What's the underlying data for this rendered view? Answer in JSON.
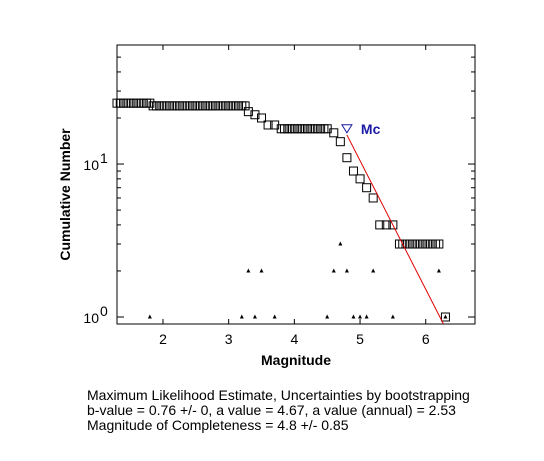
{
  "chart_data": {
    "type": "scatter",
    "xlabel": "Magnitude",
    "ylabel": "Cumulative Number",
    "x_ticks": [
      2,
      3,
      4,
      5,
      6
    ],
    "y_ticks": [
      {
        "value": 1,
        "base": "10",
        "exp": "0"
      },
      {
        "value": 10,
        "base": "10",
        "exp": "1"
      }
    ],
    "xlim": [
      1.3,
      6.75
    ],
    "ylim": [
      0.9,
      60
    ],
    "y_scale": "log",
    "series": [
      {
        "marker": "open-square",
        "color": "#000000",
        "points": [
          [
            1.3,
            25
          ],
          [
            1.35,
            25
          ],
          [
            1.4,
            25
          ],
          [
            1.45,
            25
          ],
          [
            1.5,
            25
          ],
          [
            1.55,
            25
          ],
          [
            1.6,
            25
          ],
          [
            1.65,
            25
          ],
          [
            1.7,
            25
          ],
          [
            1.75,
            25
          ],
          [
            1.8,
            25
          ],
          [
            1.85,
            24
          ],
          [
            1.9,
            24
          ],
          [
            1.95,
            24
          ],
          [
            2.0,
            24
          ],
          [
            2.05,
            24
          ],
          [
            2.1,
            24
          ],
          [
            2.15,
            24
          ],
          [
            2.2,
            24
          ],
          [
            2.25,
            24
          ],
          [
            2.3,
            24
          ],
          [
            2.35,
            24
          ],
          [
            2.4,
            24
          ],
          [
            2.45,
            24
          ],
          [
            2.5,
            24
          ],
          [
            2.55,
            24
          ],
          [
            2.6,
            24
          ],
          [
            2.65,
            24
          ],
          [
            2.7,
            24
          ],
          [
            2.75,
            24
          ],
          [
            2.8,
            24
          ],
          [
            2.85,
            24
          ],
          [
            2.9,
            24
          ],
          [
            2.95,
            24
          ],
          [
            3.0,
            24
          ],
          [
            3.05,
            24
          ],
          [
            3.1,
            24
          ],
          [
            3.15,
            24
          ],
          [
            3.2,
            24
          ],
          [
            3.25,
            24
          ],
          [
            3.3,
            22
          ],
          [
            3.4,
            21
          ],
          [
            3.5,
            20
          ],
          [
            3.6,
            18
          ],
          [
            3.7,
            18
          ],
          [
            3.8,
            17
          ],
          [
            3.85,
            17
          ],
          [
            3.9,
            17
          ],
          [
            3.95,
            17
          ],
          [
            4.0,
            17
          ],
          [
            4.05,
            17
          ],
          [
            4.1,
            17
          ],
          [
            4.15,
            17
          ],
          [
            4.2,
            17
          ],
          [
            4.25,
            17
          ],
          [
            4.3,
            17
          ],
          [
            4.35,
            17
          ],
          [
            4.4,
            17
          ],
          [
            4.45,
            17
          ],
          [
            4.5,
            17
          ],
          [
            4.6,
            16
          ],
          [
            4.7,
            14
          ],
          [
            4.8,
            11
          ],
          [
            4.9,
            9
          ],
          [
            5.0,
            8
          ],
          [
            5.1,
            7
          ],
          [
            5.2,
            6
          ],
          [
            5.3,
            4
          ],
          [
            5.4,
            4
          ],
          [
            5.5,
            4
          ],
          [
            5.6,
            3
          ],
          [
            5.65,
            3
          ],
          [
            5.7,
            3
          ],
          [
            5.75,
            3
          ],
          [
            5.8,
            3
          ],
          [
            5.85,
            3
          ],
          [
            5.9,
            3
          ],
          [
            5.95,
            3
          ],
          [
            6.0,
            3
          ],
          [
            6.05,
            3
          ],
          [
            6.1,
            3
          ],
          [
            6.15,
            3
          ],
          [
            6.2,
            3
          ],
          [
            6.3,
            1
          ]
        ]
      },
      {
        "marker": "small-triangle",
        "color": "#000000",
        "points": [
          [
            1.8,
            1
          ],
          [
            3.2,
            1
          ],
          [
            3.3,
            2
          ],
          [
            3.4,
            1
          ],
          [
            3.5,
            2
          ],
          [
            3.7,
            1
          ],
          [
            4.5,
            1
          ],
          [
            4.6,
            2
          ],
          [
            4.7,
            3
          ],
          [
            4.8,
            2
          ],
          [
            4.9,
            1
          ],
          [
            5.0,
            1
          ],
          [
            5.1,
            1
          ],
          [
            5.2,
            2
          ],
          [
            5.5,
            1
          ],
          [
            6.2,
            2
          ],
          [
            6.3,
            1
          ]
        ]
      }
    ],
    "fit_line": {
      "color": "#e00000",
      "x": [
        4.8,
        6.27
      ],
      "y": [
        15.5,
        0.9
      ]
    },
    "mc_marker": {
      "x": 4.8,
      "y": 17,
      "label": "Mc",
      "color": "#1a1aa6"
    },
    "grid": false
  },
  "caption": {
    "line1": "Maximum Likelihood Estimate, Uncertainties by bootstrapping",
    "line2": "b-value = 0.76 +/- 0,  a value = 4.67,  a value (annual) = 2.53",
    "line3": "Magnitude of Completeness = 4.8 +/- 0.85"
  }
}
